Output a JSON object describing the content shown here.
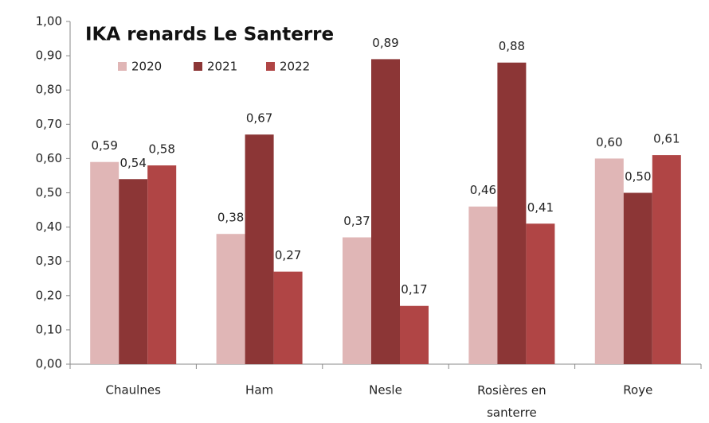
{
  "chart_data": {
    "type": "bar",
    "title": "IKA renards Le Santerre",
    "categories": [
      "Chaulnes",
      "Ham",
      "Nesle",
      "Rosières en santerre",
      "Roye"
    ],
    "series": [
      {
        "name": "2020",
        "color": "#e0b6b6",
        "values": [
          0.59,
          0.38,
          0.37,
          0.46,
          0.6
        ],
        "value_labels": [
          "0,59",
          "0,38",
          "0,37",
          "0,46",
          "0,60"
        ]
      },
      {
        "name": "2021",
        "color": "#8c3636",
        "values": [
          0.54,
          0.67,
          0.89,
          0.88,
          0.5
        ],
        "value_labels": [
          "0,54",
          "0,67",
          "0,89",
          "0,88",
          "0,50"
        ]
      },
      {
        "name": "2022",
        "color": "#b04545",
        "values": [
          0.58,
          0.27,
          0.17,
          0.41,
          0.61
        ],
        "value_labels": [
          "0,58",
          "0,27",
          "0,17",
          "0,41",
          "0,61"
        ]
      }
    ],
    "ylim": [
      0,
      1
    ],
    "yticks": [
      {
        "value": 0,
        "label": "0,00"
      },
      {
        "value": 0.1,
        "label": "0,10"
      },
      {
        "value": 0.2,
        "label": "0,20"
      },
      {
        "value": 0.3,
        "label": "0,30"
      },
      {
        "value": 0.4,
        "label": "0,40"
      },
      {
        "value": 0.5,
        "label": "0,50"
      },
      {
        "value": 0.6,
        "label": "0,60"
      },
      {
        "value": 0.7,
        "label": "0,70"
      },
      {
        "value": 0.8,
        "label": "0,80"
      },
      {
        "value": 0.9,
        "label": "0,90"
      },
      {
        "value": 1,
        "label": "1,00"
      }
    ],
    "legend": "top-left",
    "grid": false
  }
}
